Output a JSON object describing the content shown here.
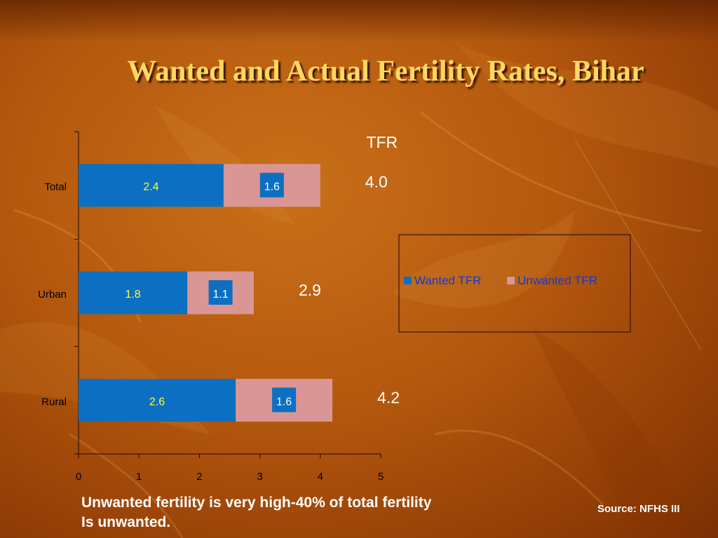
{
  "title": "Wanted and Actual Fertility Rates, Bihar",
  "chart_data": {
    "type": "bar",
    "orientation": "horizontal",
    "stacked": true,
    "categories": [
      "Total",
      "Urban",
      "Rural"
    ],
    "series": [
      {
        "name": "Wanted TFR",
        "values": [
          2.4,
          1.8,
          2.6
        ],
        "color": "#0d6fc2",
        "label_color": "#ffff3c"
      },
      {
        "name": "Unwanted TFR",
        "values": [
          1.6,
          1.1,
          1.6
        ],
        "color": "#d99694",
        "label_color": "#ffffff"
      }
    ],
    "totals_header": "TFR",
    "totals": [
      "4.0",
      "2.9",
      "4.2"
    ],
    "xlim": [
      0,
      5
    ],
    "xticks": [
      "0",
      "1",
      "2",
      "3",
      "4",
      "5"
    ],
    "grid": false,
    "legend_position": "right"
  },
  "footnote": {
    "line1": "Unwanted fertility is very high-40% of total fertility",
    "line2": "Is unwanted."
  },
  "source": "Source: NFHS III"
}
